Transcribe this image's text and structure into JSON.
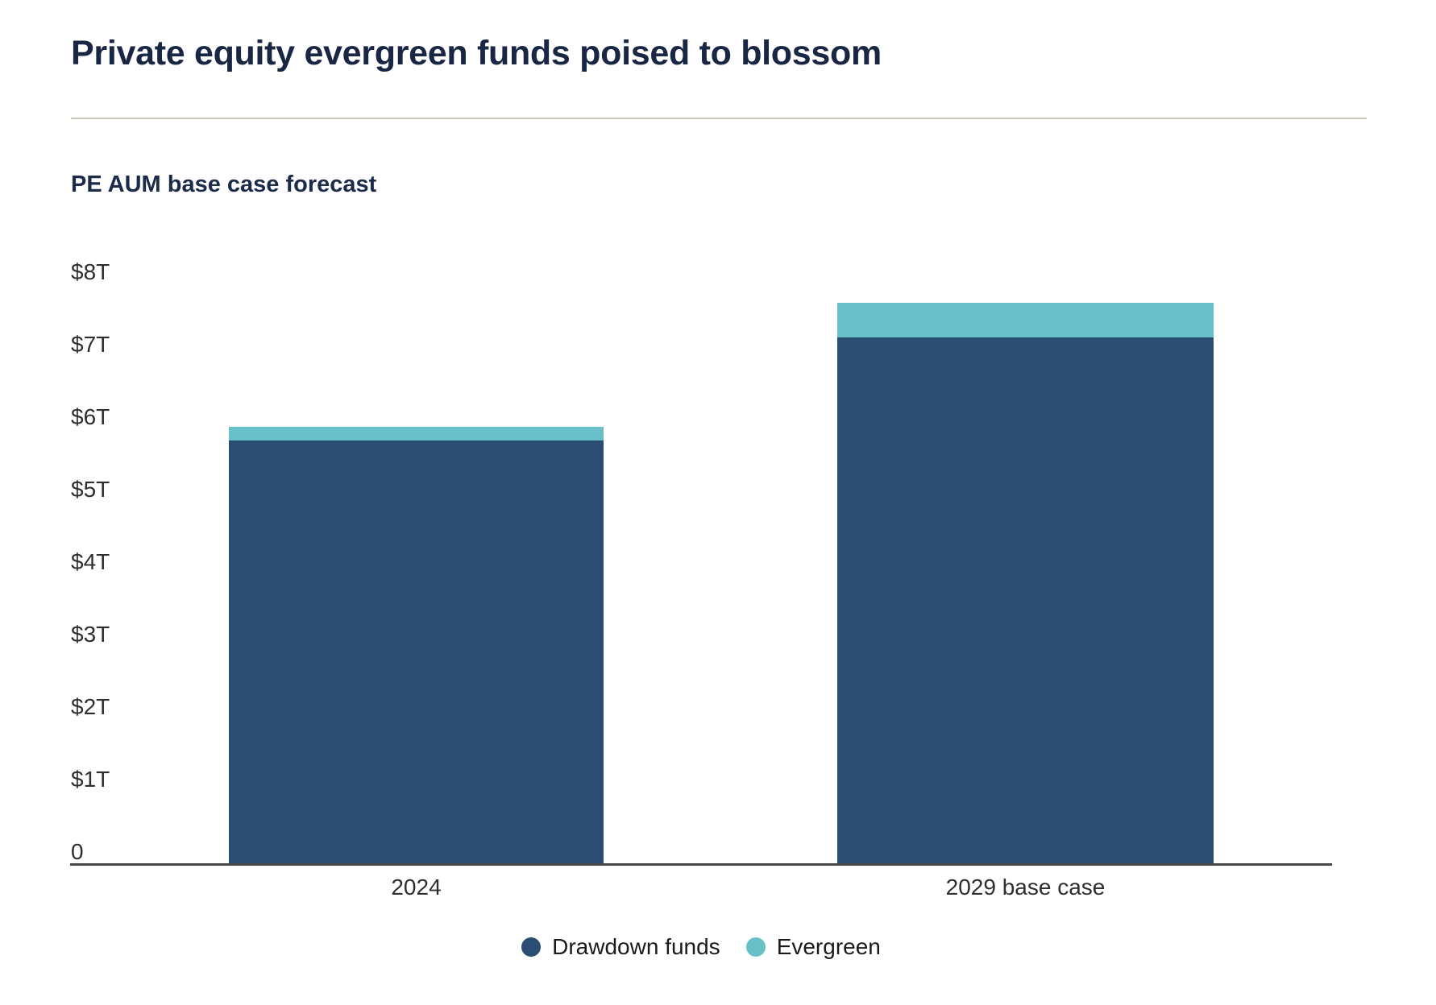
{
  "page": {
    "title": "Private equity evergreen funds poised to blossom",
    "subtitle": "PE AUM base case forecast"
  },
  "colors": {
    "title_text": "#1a2744",
    "subtitle_text": "#1c2b4a",
    "divider_tan": "#cdc8b9",
    "axis_line_gray": "#474747",
    "tick_text": "#2e2e2e",
    "drawdown_navy": "#2b4d72",
    "evergreen_teal": "#69c0c8"
  },
  "chart_data": {
    "type": "bar",
    "stacked": true,
    "title": "PE AUM base case forecast",
    "unit": "USD trillions",
    "categories": [
      "2024",
      "2029 base case"
    ],
    "series": [
      {
        "name": "Drawdown funds",
        "color": "#2b4d72",
        "values": [
          5.83,
          7.25
        ]
      },
      {
        "name": "Evergreen",
        "color": "#69c0c8",
        "values": [
          0.19,
          0.48
        ]
      }
    ],
    "ylim": [
      0,
      8
    ],
    "ytick_interval": 1,
    "ytick_labels": [
      "0",
      "$1T",
      "$2T",
      "$3T",
      "$4T",
      "$5T",
      "$6T",
      "$7T",
      "$8T"
    ],
    "grid": false,
    "legend_position": "bottom"
  }
}
